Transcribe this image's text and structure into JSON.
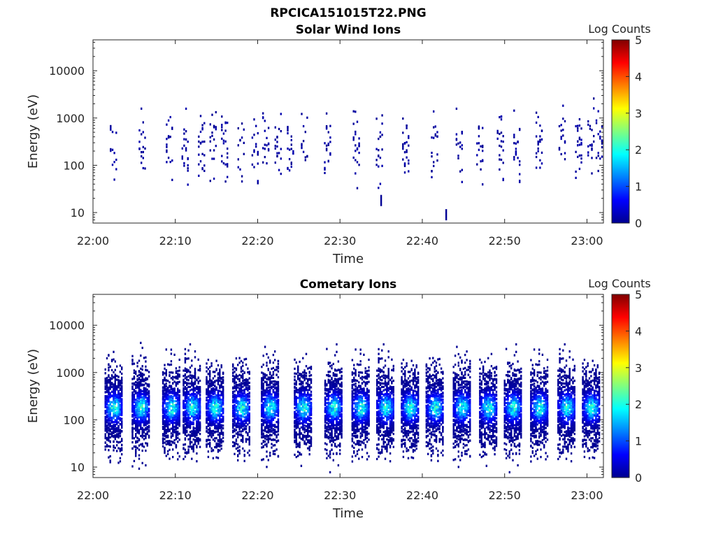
{
  "figure": {
    "filename_title": "RPCICA151015T22.PNG"
  },
  "chart_data": [
    {
      "type": "heatmap",
      "title": "Solar Wind Ions",
      "xlabel": "Time",
      "ylabel": "Energy (eV)",
      "x_ticks": [
        "22:00",
        "22:10",
        "22:20",
        "22:30",
        "22:40",
        "22:50",
        "23:00"
      ],
      "x_range_minutes": [
        0,
        62
      ],
      "y_scale": "log",
      "y_ticks": [
        "10",
        "100",
        "1000",
        "10000"
      ],
      "y_range_eV": [
        6,
        45000
      ],
      "colorbar": {
        "label": "Log Counts",
        "ticks": [
          "0",
          "1",
          "2",
          "3",
          "4",
          "5"
        ],
        "range": [
          0,
          5
        ],
        "colormap": "jet"
      },
      "bursts_min": [
        2.5,
        6.0,
        9.3,
        11.2,
        13.2,
        14.6,
        16.0,
        18.0,
        19.7,
        21.0,
        22.5,
        24.0,
        25.7,
        28.5,
        32.0,
        34.8,
        38.0,
        41.5,
        44.5,
        47.0,
        49.5,
        51.5,
        54.2,
        57.0,
        59.0,
        60.5,
        61.5
      ],
      "band_center_eV": 250,
      "typical_log_counts": 0.15,
      "isolated_events": [
        {
          "t_min": 42.8,
          "energy_eV": 9,
          "log_counts": 0.1
        },
        {
          "t_min": 34.9,
          "energy_eV": 18,
          "log_counts": 0.1
        }
      ]
    },
    {
      "type": "heatmap",
      "title": "Cometary Ions",
      "xlabel": "Time",
      "ylabel": "Energy (eV)",
      "x_ticks": [
        "22:00",
        "22:10",
        "22:20",
        "22:30",
        "22:40",
        "22:50",
        "23:00"
      ],
      "x_range_minutes": [
        0,
        62
      ],
      "y_scale": "log",
      "y_ticks": [
        "10",
        "100",
        "1000",
        "10000"
      ],
      "y_range_eV": [
        6,
        45000
      ],
      "colorbar": {
        "label": "Log Counts",
        "ticks": [
          "0",
          "1",
          "2",
          "3",
          "4",
          "5"
        ],
        "range": [
          0,
          5
        ],
        "colormap": "jet"
      },
      "bursts_min": [
        2.5,
        5.8,
        9.5,
        12.0,
        14.8,
        18.0,
        21.5,
        25.5,
        29.2,
        32.5,
        35.5,
        38.5,
        41.5,
        44.8,
        48.0,
        51.0,
        54.2,
        57.5,
        60.5
      ],
      "band_center_eV": 180,
      "peak_log_counts": 2.2
    }
  ]
}
